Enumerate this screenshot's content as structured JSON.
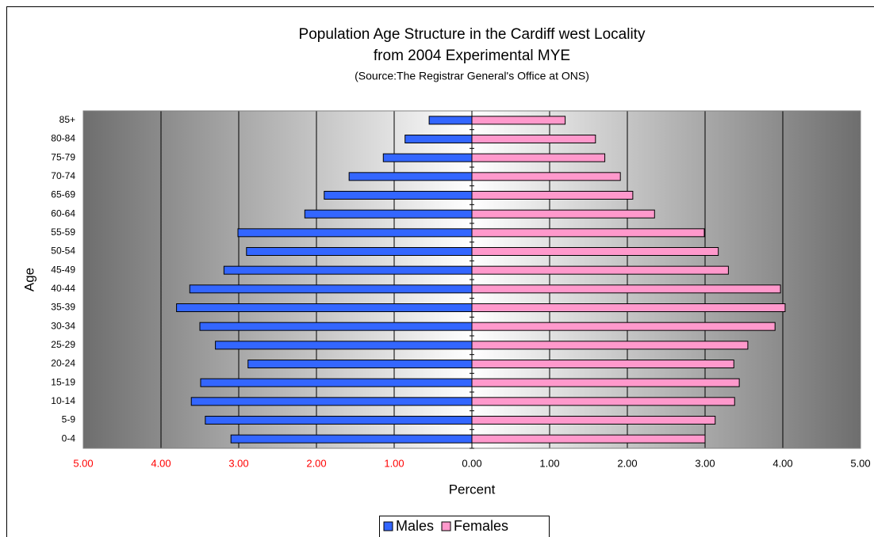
{
  "chart_data": {
    "type": "pyramid",
    "title": "Population Age Structure in the Cardiff west Locality",
    "subtitle": "from 2004 Experimental MYE",
    "source": "(Source:The Registrar General's Office at ONS)",
    "x_label": "Percent",
    "y_label": "Age",
    "categories": [
      "0-4",
      "5-9",
      "10-14",
      "15-19",
      "20-24",
      "25-29",
      "30-34",
      "35-39",
      "40-44",
      "45-49",
      "50-54",
      "55-59",
      "60-64",
      "65-69",
      "70-74",
      "75-79",
      "80-84",
      "85+"
    ],
    "series": [
      {
        "name": "Males",
        "color": "#3366ff",
        "values": [
          -3.1,
          -3.43,
          -3.61,
          -3.49,
          -2.88,
          -3.3,
          -3.5,
          -3.8,
          -3.63,
          -3.19,
          -2.9,
          -3.01,
          -2.15,
          -1.9,
          -1.58,
          -1.14,
          -0.86,
          -0.55
        ]
      },
      {
        "name": "Females",
        "color": "#ff99cc",
        "values": [
          3.0,
          3.13,
          3.38,
          3.44,
          3.37,
          3.55,
          3.9,
          4.03,
          3.97,
          3.3,
          3.17,
          2.99,
          2.35,
          2.07,
          1.91,
          1.71,
          1.59,
          1.2
        ]
      }
    ],
    "xlim": [
      -5,
      5
    ],
    "xticks": [
      {
        "value": -5,
        "label": "5.00"
      },
      {
        "value": -4,
        "label": "4.00"
      },
      {
        "value": -3,
        "label": "3.00"
      },
      {
        "value": -2,
        "label": "2.00"
      },
      {
        "value": -1,
        "label": "1.00"
      },
      {
        "value": 0,
        "label": "0.00"
      },
      {
        "value": 1,
        "label": "1.00"
      },
      {
        "value": 2,
        "label": "2.00"
      },
      {
        "value": 3,
        "label": "3.00"
      },
      {
        "value": 4,
        "label": "4.00"
      },
      {
        "value": 5,
        "label": "5.00"
      }
    ],
    "negative_tick_color": "#ff0000",
    "grid": true
  }
}
